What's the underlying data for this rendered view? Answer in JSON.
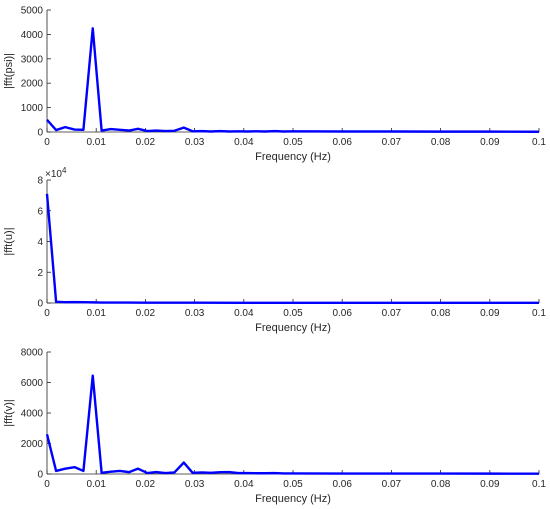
{
  "chart_data": [
    {
      "type": "line",
      "xlabel": "Frequency (Hz)",
      "ylabel": "|fft(psi)|",
      "xlim": [
        0,
        0.1
      ],
      "ylim": [
        0,
        5000
      ],
      "xticks": [
        "0",
        "0.01",
        "0.02",
        "0.03",
        "0.04",
        "0.05",
        "0.06",
        "0.07",
        "0.08",
        "0.09",
        "0.1"
      ],
      "yticks": [
        "0",
        "1000",
        "2000",
        "3000",
        "4000",
        "5000"
      ],
      "ytick_values": [
        0,
        1000,
        2000,
        3000,
        4000,
        5000
      ],
      "exponent": "",
      "grid": false,
      "color": "#0000ff",
      "series": [
        {
          "x": [
            0,
            0.00185,
            0.0037,
            0.0056,
            0.0074,
            0.0093,
            0.0111,
            0.013,
            0.0148,
            0.0167,
            0.0185,
            0.0204,
            0.0222,
            0.0241,
            0.0259,
            0.0278,
            0.0296,
            0.0315,
            0.0333,
            0.0352,
            0.037,
            0.0389,
            0.0407,
            0.0426,
            0.0444,
            0.0463,
            0.0481,
            0.05,
            0.06,
            0.07,
            0.08,
            0.09,
            0.1
          ],
          "y": [
            500,
            80,
            200,
            100,
            90,
            4250,
            60,
            120,
            90,
            60,
            130,
            40,
            60,
            40,
            50,
            180,
            30,
            40,
            20,
            40,
            20,
            30,
            20,
            30,
            20,
            40,
            20,
            30,
            20,
            20,
            15,
            15,
            10
          ]
        }
      ]
    },
    {
      "type": "line",
      "xlabel": "Frequency (Hz)",
      "ylabel": "|fft(u)|",
      "xlim": [
        0,
        0.1
      ],
      "ylim": [
        0,
        8
      ],
      "xticks": [
        "0",
        "0.01",
        "0.02",
        "0.03",
        "0.04",
        "0.05",
        "0.06",
        "0.07",
        "0.08",
        "0.09",
        "0.1"
      ],
      "yticks": [
        "0",
        "2",
        "4",
        "6",
        "8"
      ],
      "ytick_values": [
        0,
        2,
        4,
        6,
        8
      ],
      "exponent": "×10",
      "exponent_power": "4",
      "grid": false,
      "color": "#0000ff",
      "series": [
        {
          "x": [
            0,
            0.00185,
            0.0037,
            0.0056,
            0.0074,
            0.0093,
            0.0111,
            0.0148,
            0.02,
            0.03,
            0.04,
            0.05,
            0.06,
            0.07,
            0.08,
            0.09,
            0.1
          ],
          "y": [
            7.1,
            0.08,
            0.05,
            0.06,
            0.05,
            0.04,
            0.03,
            0.03,
            0.02,
            0.02,
            0.015,
            0.015,
            0.01,
            0.01,
            0.01,
            0.01,
            0.01
          ]
        }
      ]
    },
    {
      "type": "line",
      "xlabel": "Frequency (Hz)",
      "ylabel": "|fft(v)|",
      "xlim": [
        0,
        0.1
      ],
      "ylim": [
        0,
        8000
      ],
      "xticks": [
        "0",
        "0.01",
        "0.02",
        "0.03",
        "0.04",
        "0.05",
        "0.06",
        "0.07",
        "0.08",
        "0.09",
        "0.1"
      ],
      "yticks": [
        "0",
        "2000",
        "4000",
        "6000",
        "8000"
      ],
      "ytick_values": [
        0,
        2000,
        4000,
        6000,
        8000
      ],
      "exponent": "",
      "grid": false,
      "color": "#0000ff",
      "series": [
        {
          "x": [
            0,
            0.00185,
            0.0037,
            0.0056,
            0.0074,
            0.0093,
            0.0111,
            0.013,
            0.0148,
            0.0167,
            0.0185,
            0.0204,
            0.0222,
            0.0241,
            0.0259,
            0.0278,
            0.0296,
            0.0315,
            0.0333,
            0.0352,
            0.037,
            0.0389,
            0.0407,
            0.0426,
            0.0444,
            0.0463,
            0.0481,
            0.05,
            0.06,
            0.07,
            0.08,
            0.09,
            0.1
          ],
          "y": [
            2600,
            200,
            350,
            450,
            200,
            6450,
            80,
            150,
            200,
            120,
            350,
            60,
            130,
            60,
            100,
            750,
            80,
            100,
            80,
            120,
            130,
            60,
            60,
            50,
            50,
            60,
            40,
            40,
            30,
            30,
            30,
            25,
            20
          ]
        }
      ]
    }
  ]
}
